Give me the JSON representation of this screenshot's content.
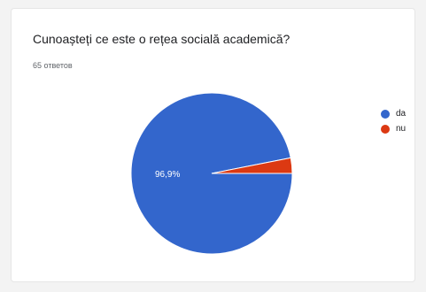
{
  "title": "Cunoașteți ce este o rețea socială academică?",
  "response_count": "65 ответов",
  "chart_data": {
    "type": "pie",
    "categories": [
      "da",
      "nu"
    ],
    "values": [
      96.9,
      3.1
    ],
    "data_labels": [
      "96,9%",
      ""
    ],
    "colors": [
      "#3366cc",
      "#dc3912"
    ],
    "legend": "right"
  }
}
